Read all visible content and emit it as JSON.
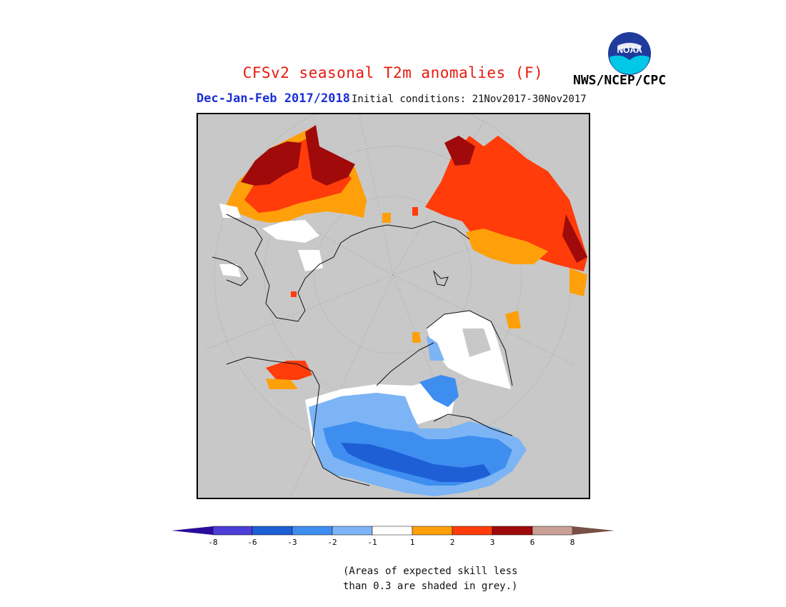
{
  "header": {
    "title": "CFSv2 seasonal T2m anomalies (F)",
    "season": "Dec-Jan-Feb 2017/2018",
    "initial_conditions": "Initial conditions: 21Nov2017-30Nov2017",
    "agency": "NWS/NCEP/CPC",
    "logo_text": "NOAA"
  },
  "colors": {
    "no_skill_grey": "#c8c8c8",
    "lt_minus8": "#2a0c9a",
    "m8_m6": "#4c3ed6",
    "m6_m3": "#1e5fd6",
    "m3_m2": "#3e8ef0",
    "m2_m1": "#7cb4f5",
    "m1_1": "#ffffff",
    "p1_p2": "#ffa00a",
    "p2_p3": "#ff3c0a",
    "p3_p6": "#a00a0a",
    "p6_p8": "#c8a096",
    "gt_p8": "#785046"
  },
  "legend": {
    "tick_labels": [
      "-8",
      "-6",
      "-3",
      "-2",
      "-1",
      "1",
      "2",
      "3",
      "6",
      "8"
    ],
    "note_line1": "(Areas of expected skill less",
    "note_line2": "than 0.3 are shaded in grey.)"
  }
}
